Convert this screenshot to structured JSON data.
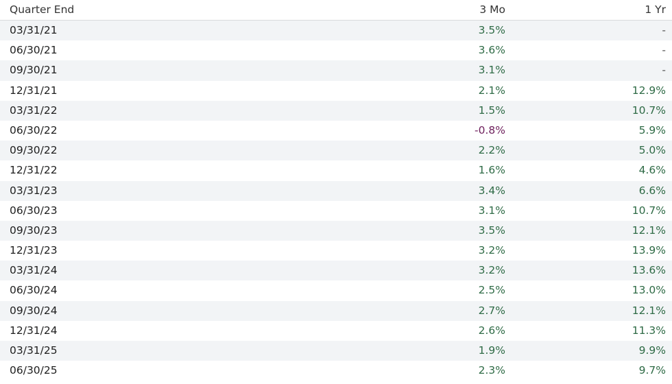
{
  "table": {
    "header": [
      "Quarter End",
      "3 Mo",
      "1 Yr"
    ],
    "rows": [
      [
        "03/31/21",
        "3.5%",
        "-"
      ],
      [
        "06/30/21",
        "3.6%",
        "-"
      ],
      [
        "09/30/21",
        "3.1%",
        "-"
      ],
      [
        "12/31/21",
        "2.1%",
        "12.9%"
      ],
      [
        "03/31/22",
        "1.5%",
        "10.7%"
      ],
      [
        "06/30/22",
        "-0.8%",
        "5.9%"
      ],
      [
        "09/30/22",
        "2.2%",
        "5.0%"
      ],
      [
        "12/31/22",
        "1.6%",
        "4.6%"
      ],
      [
        "03/31/23",
        "3.4%",
        "6.6%"
      ],
      [
        "06/30/23",
        "3.1%",
        "10.7%"
      ],
      [
        "09/30/23",
        "3.5%",
        "12.1%"
      ],
      [
        "12/31/23",
        "3.2%",
        "13.9%"
      ],
      [
        "03/31/24",
        "3.2%",
        "13.6%"
      ],
      [
        "06/30/24",
        "2.5%",
        "13.0%"
      ],
      [
        "09/30/24",
        "2.7%",
        "12.1%"
      ],
      [
        "12/31/24",
        "2.6%",
        "11.3%"
      ],
      [
        "03/31/25",
        "1.9%",
        "9.9%"
      ],
      [
        "06/30/25",
        "2.3%",
        "9.7%"
      ]
    ]
  }
}
